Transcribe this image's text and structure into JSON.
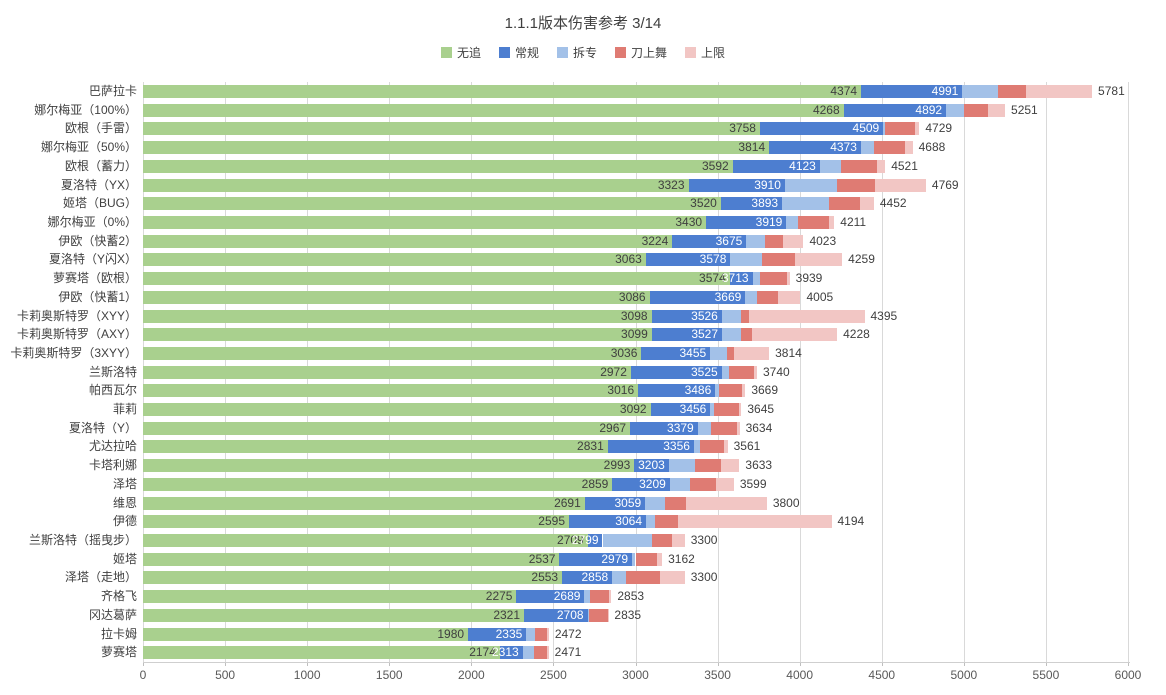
{
  "title": "1.1.1版本伤害参考 3/14",
  "legend": {
    "items": [
      {
        "label": "无追",
        "color": "#a9d08e"
      },
      {
        "label": "常规",
        "color": "#4d7ed0"
      },
      {
        "label": "拆专",
        "color": "#a3c1e8"
      },
      {
        "label": "刀上舞",
        "color": "#df7b73"
      },
      {
        "label": "上限",
        "color": "#f2c6c4"
      }
    ]
  },
  "colors": {
    "gridline": "#d9d9d9",
    "axis_text": "#595959",
    "label_text": "#3f3f3f",
    "blue_label_text": "#ffffff"
  },
  "chart_data": {
    "type": "bar",
    "orientation": "horizontal",
    "title": "1.1.1版本伤害参考 3/14",
    "xlim": [
      0,
      6000
    ],
    "x_ticks": [
      0,
      500,
      1000,
      1500,
      2000,
      2500,
      3000,
      3500,
      4000,
      4500,
      5000,
      5500,
      6000
    ],
    "grid": true,
    "legend_position": "top",
    "series_names": [
      "无追",
      "常规",
      "拆专",
      "刀上舞",
      "上限"
    ],
    "labeled_series": [
      "无追",
      "常规",
      "上限"
    ],
    "estimated_series": [
      "拆专",
      "刀上舞"
    ],
    "rows": [
      {
        "name": "巴萨拉卡",
        "values": [
          4374,
          4991,
          5210,
          5380,
          5781
        ]
      },
      {
        "name": "娜尔梅亚（100%）",
        "values": [
          4268,
          4892,
          5000,
          5150,
          5251
        ]
      },
      {
        "name": "欧根（手雷）",
        "values": [
          3758,
          4509,
          4520,
          4700,
          4729
        ]
      },
      {
        "name": "娜尔梅亚（50%）",
        "values": [
          3814,
          4373,
          4450,
          4640,
          4688
        ]
      },
      {
        "name": "欧根（蓄力）",
        "values": [
          3592,
          4123,
          4250,
          4470,
          4521
        ]
      },
      {
        "name": "夏洛特（YX）",
        "values": [
          3323,
          3910,
          4230,
          4460,
          4769
        ]
      },
      {
        "name": "姬塔（BUG）",
        "values": [
          3520,
          3893,
          4180,
          4370,
          4452
        ]
      },
      {
        "name": "娜尔梅亚（0%）",
        "values": [
          3430,
          3919,
          3990,
          4180,
          4211
        ]
      },
      {
        "name": "伊欧（快蓄2）",
        "values": [
          3224,
          3675,
          3790,
          3900,
          4023
        ]
      },
      {
        "name": "夏洛特（Y闪X）",
        "values": [
          3063,
          3578,
          3770,
          3970,
          4259
        ]
      },
      {
        "name": "萝赛塔（欧根）",
        "values": [
          3574,
          3713,
          3760,
          3920,
          3939
        ]
      },
      {
        "name": "伊欧（快蓄1）",
        "values": [
          3086,
          3669,
          3740,
          3870,
          4005
        ]
      },
      {
        "name": "卡莉奥斯特罗（XYY）",
        "values": [
          3098,
          3526,
          3640,
          3690,
          4395
        ]
      },
      {
        "name": "卡莉奥斯特罗（AXY）",
        "values": [
          3099,
          3527,
          3640,
          3710,
          4228
        ]
      },
      {
        "name": "卡莉奥斯特罗（3XYY）",
        "values": [
          3036,
          3455,
          3560,
          3600,
          3814
        ]
      },
      {
        "name": "兰斯洛特",
        "values": [
          2972,
          3525,
          3570,
          3720,
          3740
        ]
      },
      {
        "name": "帕西瓦尔",
        "values": [
          3016,
          3486,
          3510,
          3650,
          3669
        ]
      },
      {
        "name": "菲莉",
        "values": [
          3092,
          3456,
          3480,
          3630,
          3645
        ]
      },
      {
        "name": "夏洛特（Y）",
        "values": [
          2967,
          3379,
          3460,
          3620,
          3634
        ]
      },
      {
        "name": "尤达拉哈",
        "values": [
          2831,
          3356,
          3390,
          3540,
          3561
        ]
      },
      {
        "name": "卡塔利娜",
        "values": [
          2993,
          3203,
          3360,
          3520,
          3633
        ]
      },
      {
        "name": "泽塔",
        "values": [
          2859,
          3209,
          3330,
          3490,
          3599
        ]
      },
      {
        "name": "维恩",
        "values": [
          2691,
          3059,
          3180,
          3310,
          3800
        ]
      },
      {
        "name": "伊德",
        "values": [
          2595,
          3064,
          3120,
          3260,
          4194
        ]
      },
      {
        "name": "兰斯洛特（摇曳步）",
        "values": [
          2709,
          2799,
          3100,
          3220,
          3300
        ]
      },
      {
        "name": "姬塔",
        "values": [
          2537,
          2979,
          3000,
          3130,
          3162
        ]
      },
      {
        "name": "泽塔（走地）",
        "values": [
          2553,
          2858,
          2940,
          3150,
          3300
        ]
      },
      {
        "name": "齐格飞",
        "values": [
          2275,
          2689,
          2720,
          2840,
          2853
        ]
      },
      {
        "name": "冈达葛萨",
        "values": [
          2321,
          2708,
          2715,
          2830,
          2835
        ]
      },
      {
        "name": "拉卡姆",
        "values": [
          1980,
          2335,
          2390,
          2460,
          2472
        ]
      },
      {
        "name": "萝赛塔",
        "values": [
          2174,
          2313,
          2380,
          2460,
          2471
        ]
      }
    ]
  }
}
